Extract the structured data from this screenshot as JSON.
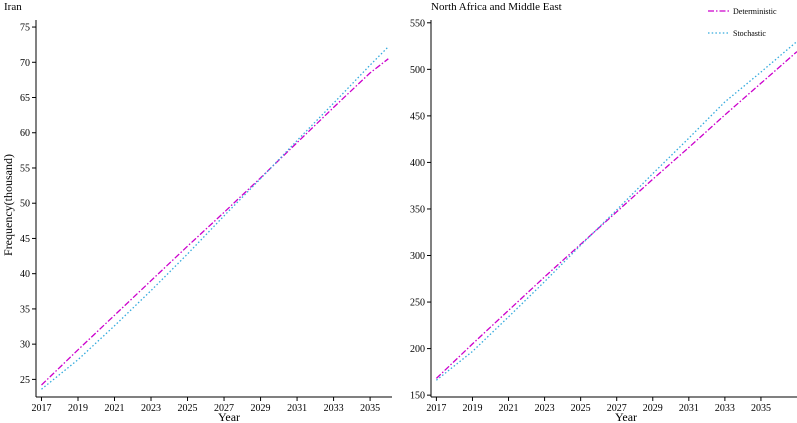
{
  "chart_data": [
    {
      "type": "line",
      "title": "Iran",
      "xlabel": "Year",
      "ylabel": "Frequency(thousand)",
      "x": [
        2017,
        2019,
        2021,
        2023,
        2025,
        2027,
        2029,
        2031,
        2033,
        2035,
        2036
      ],
      "xticks": [
        "2017",
        "2019",
        "2021",
        "2023",
        "2025",
        "2027",
        "2029",
        "2031",
        "2033",
        "2035"
      ],
      "yticks": [
        "25",
        "30",
        "35",
        "40",
        "45",
        "50",
        "55",
        "60",
        "65",
        "70",
        "75"
      ],
      "xlim": [
        2016.7,
        2036.2
      ],
      "ylim": [
        22.5,
        76
      ],
      "grid": false,
      "series": [
        {
          "name": "Deterministic",
          "color": "#cc00cc",
          "style": "dashdot",
          "values": [
            24.2,
            29.2,
            34.1,
            39.0,
            43.9,
            48.7,
            53.6,
            58.6,
            63.6,
            68.5,
            70.5
          ]
        },
        {
          "name": "Stochastic",
          "color": "#33aadd",
          "style": "dotted",
          "values": [
            23.6,
            27.8,
            32.6,
            37.6,
            42.8,
            48.2,
            53.5,
            58.9,
            64.2,
            69.6,
            72.2
          ]
        }
      ]
    },
    {
      "type": "line",
      "title": "North Africa and Middle East",
      "xlabel": "Year",
      "ylabel": "",
      "x": [
        2017,
        2019,
        2021,
        2023,
        2025,
        2027,
        2029,
        2031,
        2033,
        2035,
        2037
      ],
      "xticks": [
        "2017",
        "2019",
        "2021",
        "2023",
        "2025",
        "2027",
        "2029",
        "2031",
        "2033",
        "2035"
      ],
      "yticks": [
        "150",
        "200",
        "250",
        "300",
        "350",
        "400",
        "450",
        "500",
        "550"
      ],
      "xlim": [
        2016.7,
        2037.0
      ],
      "ylim": [
        148,
        553
      ],
      "grid": false,
      "legend_position": "top-right",
      "series": [
        {
          "name": "Deterministic",
          "color": "#cc00cc",
          "style": "dashdot",
          "values": [
            168,
            205,
            241,
            277,
            312,
            347,
            382,
            416,
            451,
            485,
            519
          ]
        },
        {
          "name": "Stochastic",
          "color": "#33aadd",
          "style": "dotted",
          "values": [
            166,
            197,
            234,
            272,
            311,
            349,
            388,
            426,
            465,
            497,
            530
          ]
        }
      ]
    }
  ]
}
